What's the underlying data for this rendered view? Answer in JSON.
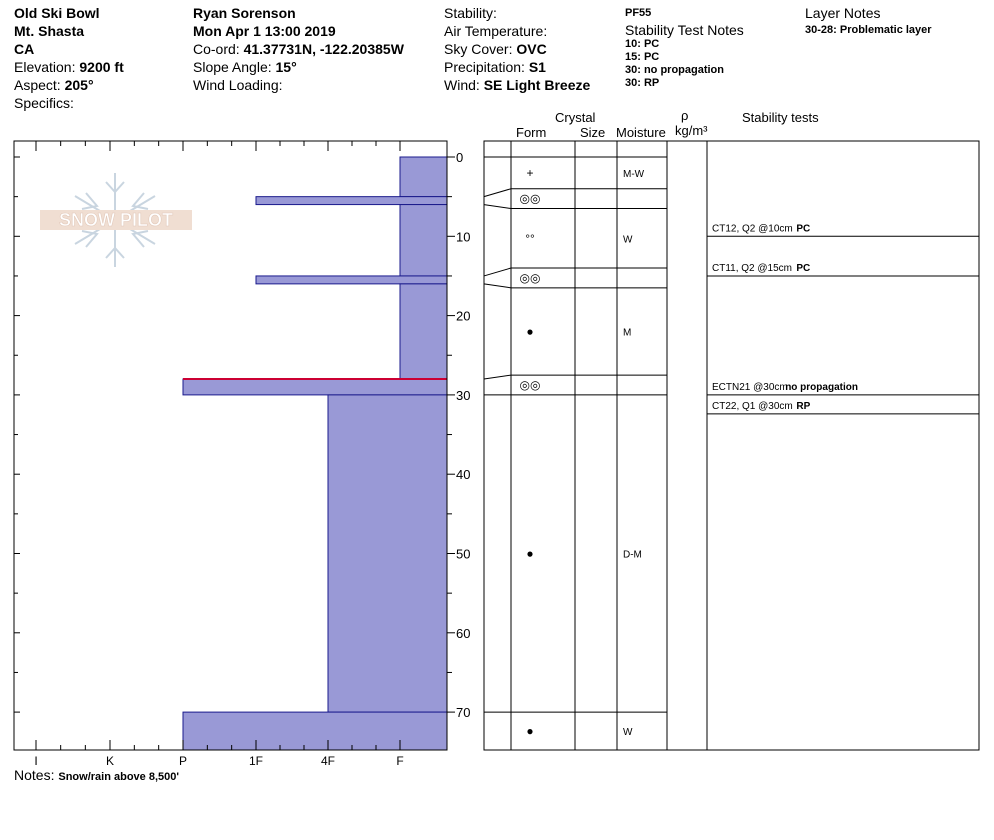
{
  "header": {
    "col1": {
      "location": "Old Ski Bowl",
      "area": "Mt. Shasta",
      "state": "CA",
      "elevation_label": "Elevation: ",
      "elevation": "9200 ft",
      "aspect_label": "Aspect: ",
      "aspect": "205°",
      "specifics_label": "Specifics:"
    },
    "col2": {
      "observer": "Ryan Sorenson",
      "date": "Mon Apr 1 13:00 2019",
      "coord_label": "Co-ord: ",
      "coord": "41.37731N, -122.20385W",
      "slope_label": "Slope Angle: ",
      "slope": "15°",
      "wind_loading_label": "Wind Loading:"
    },
    "col3": {
      "stability_label": "Stability:",
      "air_temp_label": "Air Temperature:",
      "sky_label": "Sky Cover: ",
      "sky": "OVC",
      "precip_label": "Precipitation: ",
      "precip": "S1",
      "wind_label": "Wind: ",
      "wind": "SE Light Breeze"
    },
    "col4": {
      "pit_id": "PF55",
      "notes_title": "Stability Test Notes",
      "notes": [
        "10: PC",
        "15: PC",
        "30: no propagation",
        "30: RP"
      ]
    },
    "col5": {
      "title": "Layer Notes",
      "note": "30-28: Problematic layer"
    }
  },
  "logo": {
    "text": "SNOW PILOT"
  },
  "table": {
    "crystal_label": "Crystal",
    "form_label": "Form",
    "size_label": "Size",
    "moisture_label": "Moisture",
    "rho_label": "ρ",
    "density_unit": "kg/m³",
    "stability_tests_label": "Stability tests"
  },
  "notes": {
    "label": "Notes:",
    "text": "Snow/rain above 8,500'"
  },
  "colors": {
    "hardness_fill": "#9999d6",
    "layer_edge": "#1a1a8c",
    "problem_layer": "#cc0033"
  },
  "chart_data": {
    "type": "bar",
    "orientation": "horizontal",
    "hardness_scale": [
      "I",
      "K",
      "P",
      "1F",
      "4F",
      "F"
    ],
    "depth_ticks": [
      0,
      10,
      20,
      30,
      40,
      50,
      60,
      70
    ],
    "depth_range": [
      0,
      75
    ],
    "layers": [
      {
        "top": 0,
        "bottom": 5,
        "hardness": "F"
      },
      {
        "top": 5,
        "bottom": 6,
        "hardness": "1F"
      },
      {
        "top": 6,
        "bottom": 15,
        "hardness": "F"
      },
      {
        "top": 15,
        "bottom": 16,
        "hardness": "1F"
      },
      {
        "top": 16,
        "bottom": 28,
        "hardness": "F"
      },
      {
        "top": 28,
        "bottom": 30,
        "hardness": "P",
        "problematic": true
      },
      {
        "top": 30,
        "bottom": 70,
        "hardness": "4F"
      },
      {
        "top": 70,
        "bottom": 75,
        "hardness": "P"
      }
    ],
    "table_layers": [
      {
        "top": 0,
        "bottom": 4,
        "form": "+",
        "moisture": "M-W"
      },
      {
        "top": 4,
        "bottom": 6.5,
        "form": "◎◎",
        "moisture": ""
      },
      {
        "top": 6.5,
        "bottom": 14,
        "form": "°°",
        "moisture": "W"
      },
      {
        "top": 14,
        "bottom": 16.5,
        "form": "◎◎",
        "moisture": ""
      },
      {
        "top": 16.5,
        "bottom": 27.5,
        "form": "●",
        "moisture": "M"
      },
      {
        "top": 27.5,
        "bottom": 30,
        "form": "◎◎",
        "moisture": ""
      },
      {
        "top": 30,
        "bottom": 70,
        "form": "●",
        "moisture": "D-M"
      },
      {
        "top": 70,
        "bottom": 75,
        "form": "●",
        "moisture": "W"
      }
    ],
    "stability_tests": [
      {
        "depth": 10,
        "test": "CT12, Q2 @10cm",
        "result": "PC"
      },
      {
        "depth": 15,
        "test": "CT11, Q2 @15cm",
        "result": "PC"
      },
      {
        "depth": 30,
        "test": "ECTN21 @30cm",
        "result": "no propagation"
      },
      {
        "depth": 30,
        "test": "CT22, Q1 @30cm",
        "result": "RP"
      }
    ]
  }
}
